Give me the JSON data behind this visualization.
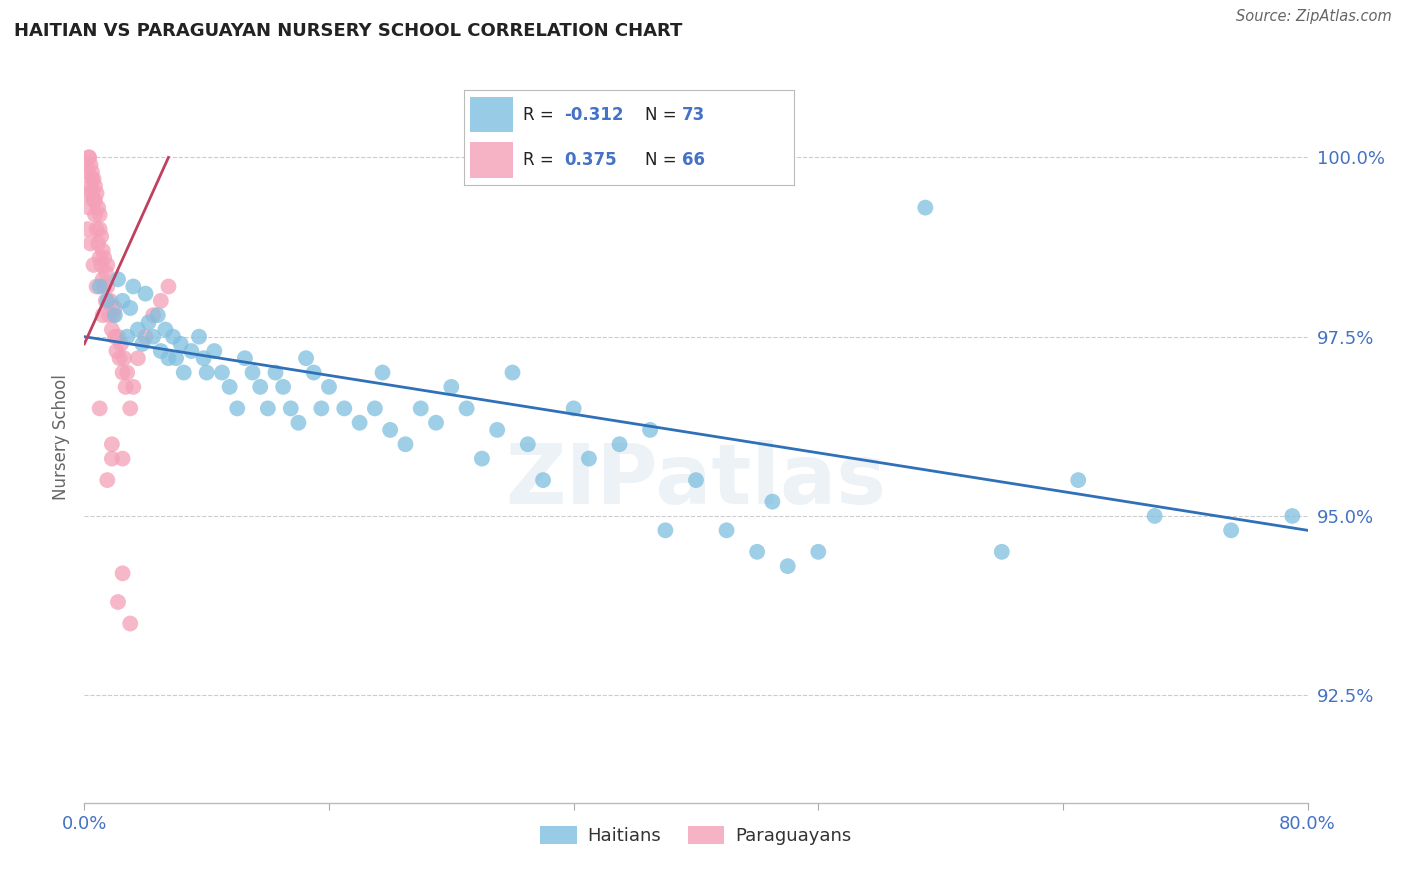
{
  "title": "HAITIAN VS PARAGUAYAN NURSERY SCHOOL CORRELATION CHART",
  "source": "Source: ZipAtlas.com",
  "ylabel": "Nursery School",
  "yticks": [
    92.5,
    95.0,
    97.5,
    100.0
  ],
  "ytick_labels": [
    "92.5%",
    "95.0%",
    "97.5%",
    "100.0%"
  ],
  "xmin": 0.0,
  "xmax": 80.0,
  "ymin": 91.0,
  "ymax": 101.2,
  "blue_R": -0.312,
  "blue_N": 73,
  "pink_R": 0.375,
  "pink_N": 66,
  "blue_color": "#7fbfdf",
  "pink_color": "#f4a0b8",
  "blue_line_color": "#3070b8",
  "pink_line_color": "#c04060",
  "legend_blue_label": "Haitians",
  "legend_pink_label": "Paraguayans",
  "watermark": "ZIPatlas",
  "blue_scatter_x": [
    1.0,
    1.5,
    2.0,
    2.2,
    2.5,
    2.8,
    3.0,
    3.2,
    3.5,
    3.8,
    4.0,
    4.2,
    4.5,
    4.8,
    5.0,
    5.3,
    5.5,
    5.8,
    6.0,
    6.3,
    6.5,
    7.0,
    7.5,
    7.8,
    8.0,
    8.5,
    9.0,
    9.5,
    10.0,
    10.5,
    11.0,
    11.5,
    12.0,
    12.5,
    13.0,
    13.5,
    14.0,
    14.5,
    15.0,
    15.5,
    16.0,
    17.0,
    18.0,
    19.0,
    19.5,
    20.0,
    21.0,
    22.0,
    23.0,
    24.0,
    25.0,
    26.0,
    27.0,
    28.0,
    29.0,
    30.0,
    32.0,
    33.0,
    35.0,
    37.0,
    38.0,
    40.0,
    42.0,
    44.0,
    45.0,
    46.0,
    48.0,
    55.0,
    60.0,
    65.0,
    70.0,
    75.0,
    79.0
  ],
  "blue_scatter_y": [
    98.2,
    98.0,
    97.8,
    98.3,
    98.0,
    97.5,
    97.9,
    98.2,
    97.6,
    97.4,
    98.1,
    97.7,
    97.5,
    97.8,
    97.3,
    97.6,
    97.2,
    97.5,
    97.2,
    97.4,
    97.0,
    97.3,
    97.5,
    97.2,
    97.0,
    97.3,
    97.0,
    96.8,
    96.5,
    97.2,
    97.0,
    96.8,
    96.5,
    97.0,
    96.8,
    96.5,
    96.3,
    97.2,
    97.0,
    96.5,
    96.8,
    96.5,
    96.3,
    96.5,
    97.0,
    96.2,
    96.0,
    96.5,
    96.3,
    96.8,
    96.5,
    95.8,
    96.2,
    97.0,
    96.0,
    95.5,
    96.5,
    95.8,
    96.0,
    96.2,
    94.8,
    95.5,
    94.8,
    94.5,
    95.2,
    94.3,
    94.5,
    99.3,
    94.5,
    95.5,
    95.0,
    94.8,
    95.0
  ],
  "pink_scatter_x": [
    0.1,
    0.2,
    0.3,
    0.3,
    0.4,
    0.4,
    0.5,
    0.5,
    0.6,
    0.6,
    0.7,
    0.7,
    0.8,
    0.8,
    0.9,
    0.9,
    1.0,
    1.0,
    1.1,
    1.1,
    1.2,
    1.2,
    1.3,
    1.3,
    1.4,
    1.4,
    1.5,
    1.5,
    1.6,
    1.7,
    1.8,
    1.9,
    2.0,
    2.0,
    2.1,
    2.2,
    2.3,
    2.4,
    2.5,
    2.6,
    2.7,
    2.8,
    3.0,
    3.2,
    3.5,
    4.0,
    4.5,
    5.0,
    5.5,
    0.3,
    0.5,
    0.7,
    1.0,
    0.2,
    0.4,
    0.6,
    0.8,
    1.2,
    1.5,
    1.8,
    2.2,
    2.5,
    3.0,
    1.0,
    1.8,
    2.5
  ],
  "pink_scatter_y": [
    99.5,
    99.8,
    99.3,
    100.0,
    99.6,
    99.9,
    99.5,
    99.8,
    99.4,
    99.7,
    99.2,
    99.6,
    99.0,
    99.5,
    98.8,
    99.3,
    98.6,
    99.0,
    98.5,
    98.9,
    98.3,
    98.7,
    98.2,
    98.6,
    98.0,
    98.4,
    98.2,
    98.5,
    97.8,
    98.0,
    97.6,
    97.8,
    97.5,
    97.9,
    97.3,
    97.5,
    97.2,
    97.4,
    97.0,
    97.2,
    96.8,
    97.0,
    96.5,
    96.8,
    97.2,
    97.5,
    97.8,
    98.0,
    98.2,
    100.0,
    99.7,
    99.4,
    99.2,
    99.0,
    98.8,
    98.5,
    98.2,
    97.8,
    95.5,
    95.8,
    93.8,
    94.2,
    93.5,
    96.5,
    96.0,
    95.8
  ],
  "blue_trendline_x": [
    0.0,
    80.0
  ],
  "blue_trendline_y": [
    97.5,
    94.8
  ],
  "pink_trendline_x": [
    0.0,
    5.5
  ],
  "pink_trendline_y": [
    97.4,
    100.0
  ]
}
